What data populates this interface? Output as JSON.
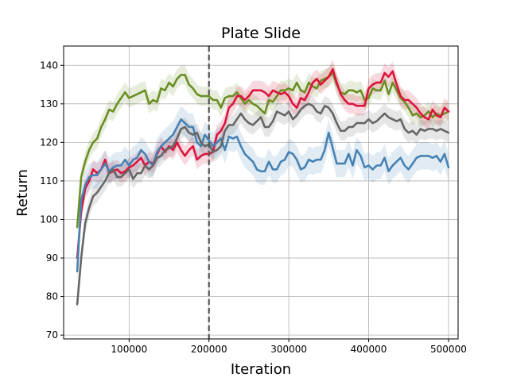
{
  "chart_data": {
    "type": "line",
    "title": "Plate Slide",
    "xlabel": "Iteration",
    "ylabel": "Return",
    "xlim": [
      18000,
      512000
    ],
    "ylim": [
      69,
      145
    ],
    "xticks": [
      100000,
      200000,
      300000,
      400000,
      500000
    ],
    "xtick_labels": [
      "100000",
      "200000",
      "300000",
      "400000",
      "500000"
    ],
    "yticks": [
      70,
      80,
      90,
      100,
      110,
      120,
      130,
      140
    ],
    "ytick_labels": [
      "70",
      "80",
      "90",
      "100",
      "110",
      "120",
      "130",
      "140"
    ],
    "grid": true,
    "legend": "none",
    "vline": {
      "x": 200000,
      "style": "dashed",
      "color": "#555555"
    },
    "x": [
      35000,
      40000,
      45000,
      50000,
      55000,
      60000,
      65000,
      70000,
      75000,
      80000,
      85000,
      90000,
      95000,
      100000,
      105000,
      110000,
      115000,
      120000,
      125000,
      130000,
      135000,
      140000,
      145000,
      150000,
      155000,
      160000,
      165000,
      170000,
      175000,
      180000,
      185000,
      190000,
      195000,
      200000,
      205000,
      210000,
      215000,
      220000,
      225000,
      230000,
      235000,
      240000,
      245000,
      250000,
      255000,
      260000,
      265000,
      270000,
      275000,
      280000,
      285000,
      290000,
      295000,
      300000,
      305000,
      310000,
      315000,
      320000,
      325000,
      330000,
      335000,
      340000,
      345000,
      350000,
      355000,
      360000,
      365000,
      370000,
      375000,
      380000,
      385000,
      390000,
      395000,
      400000,
      405000,
      410000,
      415000,
      420000,
      425000,
      430000,
      435000,
      440000,
      445000,
      450000,
      455000,
      460000,
      465000,
      470000,
      475000,
      480000,
      485000,
      490000,
      495000,
      500000
    ],
    "series": [
      {
        "color": "#6b8e23",
        "band": 2.5,
        "values": [
          98,
          111,
          115,
          118,
          120,
          121,
          124,
          126,
          128.5,
          128,
          130,
          131.5,
          133,
          131.5,
          132,
          132.5,
          133,
          133.5,
          130,
          131,
          130.5,
          134,
          133.5,
          135.5,
          134.5,
          136.5,
          137.5,
          137.5,
          135,
          134,
          132.5,
          132,
          132,
          132,
          131,
          131,
          129,
          131.5,
          132,
          132,
          133,
          131.5,
          130,
          131,
          130,
          129.5,
          128.5,
          127.5,
          131,
          130.5,
          132,
          133.5,
          133.5,
          134,
          133.5,
          135.5,
          133.5,
          133,
          135.5,
          134.5,
          134,
          136,
          136.5,
          137,
          138,
          135,
          133,
          132.5,
          133.5,
          133.5,
          133,
          133.5,
          131,
          131.5,
          134,
          133.5,
          133.5,
          136,
          132.5,
          135.5,
          133.5,
          131.5,
          130.5,
          129,
          127,
          127.5,
          126.5,
          127,
          128,
          126.5,
          127.5,
          127,
          127.5,
          128
        ]
      },
      {
        "color": "#dc143c",
        "band": 2.5,
        "values": [
          90,
          102,
          108,
          110,
          113,
          112,
          113,
          115.5,
          112,
          112.5,
          113,
          112,
          112.5,
          113.5,
          114,
          115,
          116,
          114,
          115,
          114.5,
          117,
          119,
          117.5,
          119,
          118,
          120,
          118,
          116.5,
          118,
          119,
          115.5,
          116.5,
          117,
          117,
          117.5,
          122,
          123,
          125,
          129,
          130,
          132,
          132,
          131,
          132,
          133.5,
          133.5,
          133.5,
          133,
          132,
          133.5,
          133,
          132.5,
          133,
          132,
          130,
          129,
          131.5,
          131,
          133,
          135.5,
          136.5,
          135,
          136,
          137,
          139,
          135.5,
          132.5,
          131,
          130,
          130,
          129.5,
          129.5,
          129.5,
          134,
          135,
          135.5,
          135.5,
          138,
          137,
          138.5,
          135,
          132,
          131,
          131,
          130,
          129,
          127.5,
          126.5,
          126,
          128.5,
          127,
          126.5,
          129,
          128
        ]
      },
      {
        "color": "#4682b4",
        "band": 3.5,
        "values": [
          86.5,
          105,
          109,
          111,
          111.5,
          111.5,
          113,
          114.5,
          112.5,
          113.5,
          114,
          114,
          115.5,
          114,
          115.5,
          116,
          118,
          117,
          115,
          114,
          117.5,
          119,
          120,
          121,
          122,
          124,
          126,
          125,
          124,
          124,
          120,
          119,
          122,
          120.5,
          119,
          120,
          121,
          118,
          121.5,
          121,
          121.5,
          119,
          117,
          116,
          115,
          113,
          112.5,
          112.5,
          115,
          113,
          113,
          115,
          115.5,
          117.5,
          117,
          115.5,
          113,
          113.5,
          115.5,
          115,
          115.5,
          115.5,
          118,
          122.5,
          118.5,
          114.5,
          114.5,
          114.5,
          117,
          114,
          118,
          116.5,
          113.5,
          114,
          113,
          114,
          114,
          116,
          112.5,
          114,
          115,
          116,
          114,
          113,
          114.5,
          116,
          116.5,
          116.5,
          116.5,
          116,
          116.5,
          115,
          117,
          113.5
        ]
      },
      {
        "color": "#666666",
        "band": 2.5,
        "values": [
          78,
          90,
          99,
          103,
          106,
          107,
          108.5,
          110,
          112,
          113,
          111,
          111,
          112,
          113,
          110.5,
          112,
          112,
          114,
          113,
          114,
          116,
          116.5,
          118,
          118.5,
          119,
          121,
          123.5,
          124,
          122.5,
          122,
          122.5,
          120,
          119,
          119.5,
          117.5,
          118,
          119,
          123,
          124.5,
          124.5,
          126,
          127.5,
          126,
          125,
          124.5,
          125.5,
          126.5,
          124,
          124,
          125.5,
          128,
          127.5,
          127,
          128,
          126,
          127,
          128.5,
          129.5,
          130,
          129.5,
          128,
          127.5,
          129.5,
          129,
          127.5,
          125,
          123,
          123,
          124,
          124,
          125,
          125,
          125,
          126,
          125,
          125.5,
          126.5,
          127.5,
          126.5,
          126,
          125.5,
          126,
          123.5,
          122.5,
          123,
          122,
          123.5,
          123,
          123.5,
          123.5,
          123,
          123.5,
          123,
          122.5
        ]
      }
    ]
  }
}
